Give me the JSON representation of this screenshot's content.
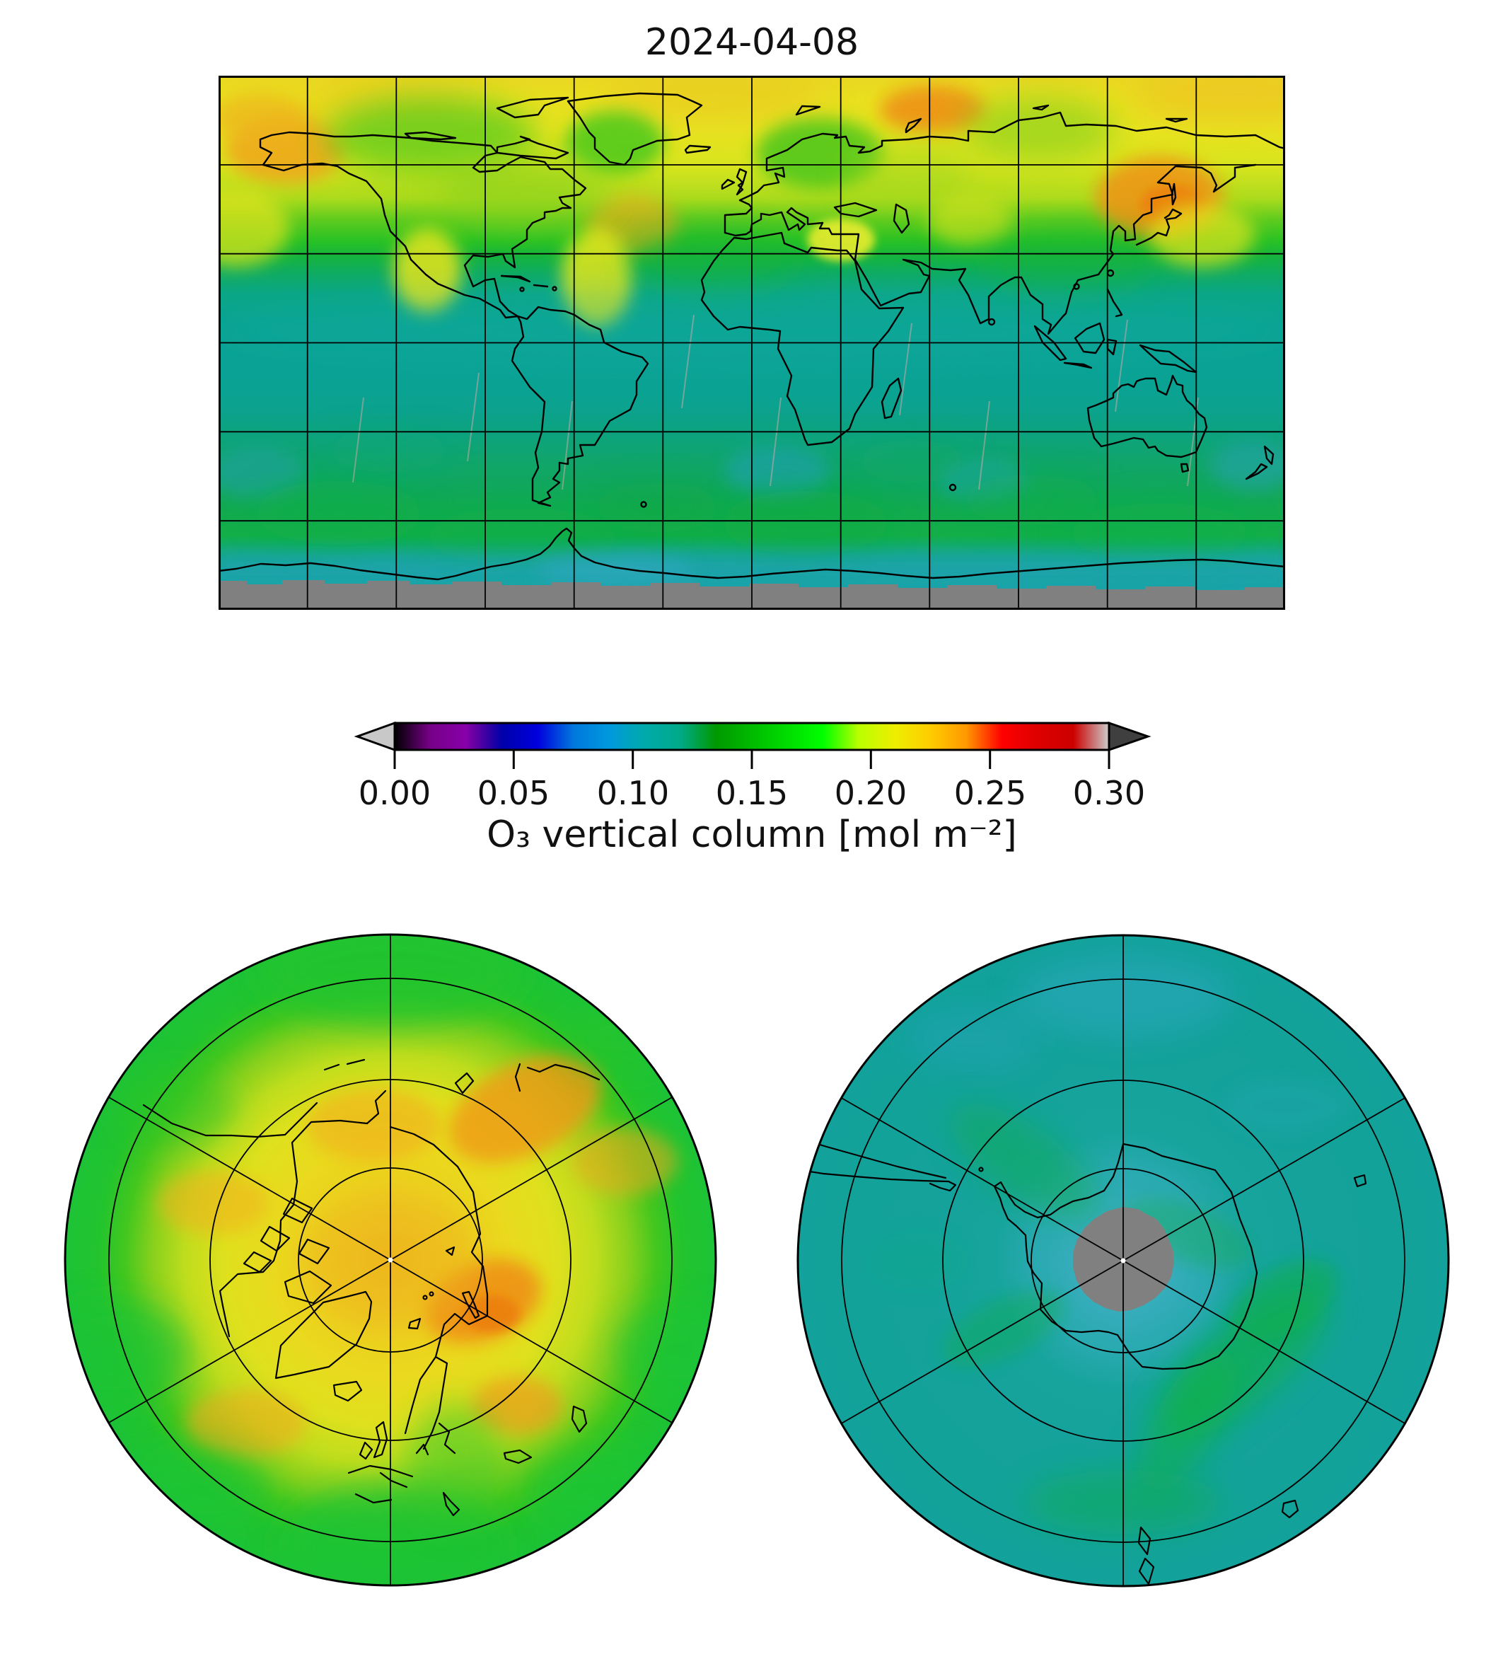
{
  "title": "2024-04-08",
  "colorbar": {
    "label": "O₃ vertical column [mol m⁻²]",
    "ticks": [
      "0.00",
      "0.05",
      "0.10",
      "0.15",
      "0.20",
      "0.25",
      "0.30"
    ],
    "range": [
      0.0,
      0.3
    ],
    "units": "mol m⁻²",
    "under_arrow_color": "#c8c8c8",
    "over_arrow_color": "#3f3f3f",
    "missing_data_color": "#808080",
    "colormap_name": "nipy_spectral-like",
    "colormap_stops": [
      {
        "frac": 0.0,
        "value": 0.0,
        "color": "#000000"
      },
      {
        "frac": 0.05,
        "value": 0.015,
        "color": "#770088"
      },
      {
        "frac": 0.1,
        "value": 0.03,
        "color": "#8800aa"
      },
      {
        "frac": 0.125,
        "value": 0.038,
        "color": "#4400a1"
      },
      {
        "frac": 0.15,
        "value": 0.045,
        "color": "#0000aa"
      },
      {
        "frac": 0.2,
        "value": 0.06,
        "color": "#0000dd"
      },
      {
        "frac": 0.25,
        "value": 0.075,
        "color": "#0077dd"
      },
      {
        "frac": 0.3,
        "value": 0.09,
        "color": "#0099dd"
      },
      {
        "frac": 0.35,
        "value": 0.105,
        "color": "#00aaaa"
      },
      {
        "frac": 0.4,
        "value": 0.12,
        "color": "#00aa88"
      },
      {
        "frac": 0.45,
        "value": 0.135,
        "color": "#009900"
      },
      {
        "frac": 0.5,
        "value": 0.15,
        "color": "#00bb00"
      },
      {
        "frac": 0.55,
        "value": 0.165,
        "color": "#00dd00"
      },
      {
        "frac": 0.6,
        "value": 0.18,
        "color": "#00ff00"
      },
      {
        "frac": 0.65,
        "value": 0.195,
        "color": "#bbff00"
      },
      {
        "frac": 0.7,
        "value": 0.21,
        "color": "#eeee00"
      },
      {
        "frac": 0.75,
        "value": 0.225,
        "color": "#ffcc00"
      },
      {
        "frac": 0.8,
        "value": 0.24,
        "color": "#ff9900"
      },
      {
        "frac": 0.85,
        "value": 0.255,
        "color": "#ff0000"
      },
      {
        "frac": 0.9,
        "value": 0.27,
        "color": "#dd0000"
      },
      {
        "frac": 0.95,
        "value": 0.285,
        "color": "#cc0000"
      },
      {
        "frac": 1.0,
        "value": 0.3,
        "color": "#cccccc"
      }
    ]
  },
  "chart_data": {
    "type": "heatmap",
    "title": "2024-04-08",
    "variable": "O₃ vertical column",
    "units": "mol m⁻²",
    "value_range": [
      0.0,
      0.3
    ],
    "colormap": "nipy_spectral-like (black-purple-blue-cyan-teal-green-yellow-orange-red-lightgray)",
    "missing_data": "gray patches: Antarctic polar-night region (south of ~80S)",
    "panels": [
      {
        "name": "global_map",
        "projection": "equirectangular (PlateCarree)",
        "lon_range": [
          -180,
          180
        ],
        "lat_range": [
          -90,
          90
        ],
        "gridlines_every_deg": 30,
        "coastlines": true,
        "zonal_mean_values": [
          {
            "lat_band": "75N-90N",
            "o3_mol_m2": 0.205
          },
          {
            "lat_band": "60N-75N",
            "o3_mol_m2": 0.21
          },
          {
            "lat_band": "45N-60N",
            "o3_mol_m2": 0.195
          },
          {
            "lat_band": "30N-45N",
            "o3_mol_m2": 0.17
          },
          {
            "lat_band": "15N-30N",
            "o3_mol_m2": 0.135
          },
          {
            "lat_band": "15S-15N",
            "o3_mol_m2": 0.115
          },
          {
            "lat_band": "30S-15S",
            "o3_mol_m2": 0.118
          },
          {
            "lat_band": "45S-30S",
            "o3_mol_m2": 0.125
          },
          {
            "lat_band": "60S-45S",
            "o3_mol_m2": 0.15
          },
          {
            "lat_band": "78S-60S",
            "o3_mol_m2": 0.125
          },
          {
            "lat_band": "90S-78S",
            "o3_mol_m2": null
          }
        ],
        "local_maxima": [
          {
            "region": "Alaska / Bering Strait (~68N,155W)",
            "o3_mol_m2": 0.235
          },
          {
            "region": "Sea of Okhotsk / Kamchatka (~55N,150E)",
            "o3_mol_m2": 0.245
          },
          {
            "region": "Kara Sea / Taymyr (~78N,90E)",
            "o3_mol_m2": 0.24
          },
          {
            "region": "North Atlantic (~42N,45W)",
            "o3_mol_m2": 0.225
          },
          {
            "region": "Mediterranean tongue (~35N,20E)",
            "o3_mol_m2": 0.21
          }
        ],
        "local_minima": [
          {
            "region": "tropical belt",
            "o3_mol_m2": 0.11
          },
          {
            "region": "southern mid-latitude blue patches (S Atlantic, S Indian)",
            "o3_mol_m2": 0.095
          }
        ]
      },
      {
        "name": "north_polar_view",
        "projection": "orthographic over North Pole, 0° longitude at bottom",
        "gridlines": {
          "parallel_circles_at_fraction_of_radius": [
            0.28,
            0.55,
            0.86
          ],
          "meridians_every_deg": 60
        },
        "pattern": "green rim (~0.17-0.18) at lower latitudes, yellow Arctic interior (~0.20-0.21), orange maxima (~0.23-0.245) over East Siberia/Kamchatka, the Severnaya Zemlya sector, north of Alaska and near the pole",
        "pole_marker": "small white dot"
      },
      {
        "name": "south_polar_view",
        "projection": "azimuthal over South Pole, 0° longitude at top",
        "gridlines": {
          "parallel_circles_at_fraction_of_radius": [
            0.28,
            0.55,
            0.86
          ],
          "meridians_every_deg": 60
        },
        "pattern": "teal background (~0.11-0.12) with brighter green filaments (~0.14-0.16), slightly bluer air (~0.10) just outside the missing-data disk, Antarctica coastline outlined",
        "missing_disk_radius_fraction": 0.16,
        "pole_marker": "small white dot"
      }
    ]
  }
}
